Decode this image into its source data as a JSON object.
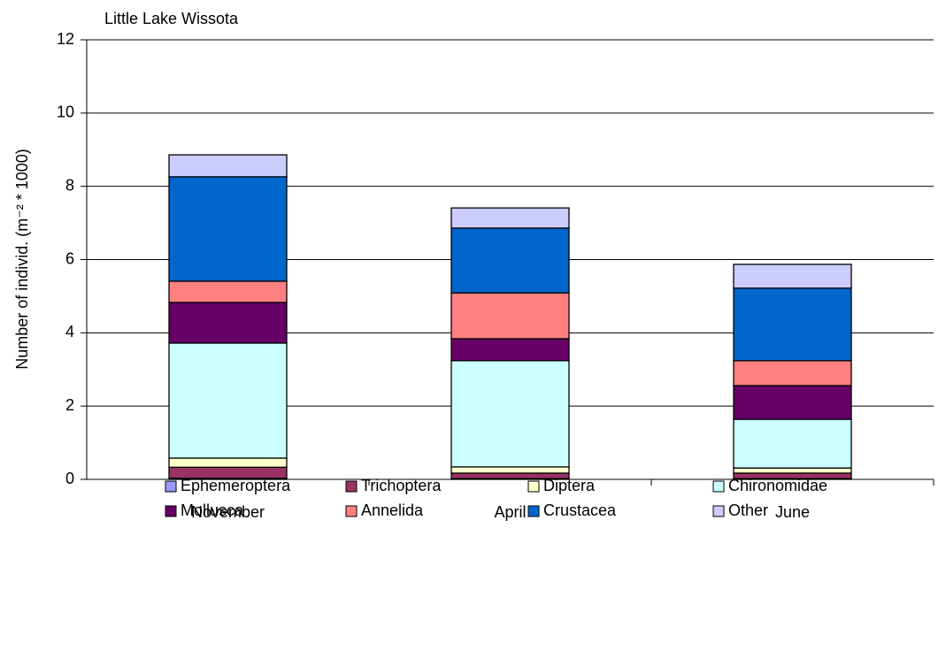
{
  "chart_data": {
    "type": "stacked_bar",
    "title": "Little Lake Wissota",
    "y_label": "Number of individ. (m⁻² * 1000)",
    "categories": [
      "November",
      "April",
      "June"
    ],
    "ylim": [
      0,
      12
    ],
    "yticks": [
      0,
      2,
      4,
      6,
      8,
      10,
      12
    ],
    "grid": true,
    "series": [
      {
        "name": "Ephemeroptera",
        "color": "#9999ff",
        "values": [
          0.03,
          0.02,
          0.02
        ]
      },
      {
        "name": "Trichoptera",
        "color": "#993366",
        "values": [
          0.3,
          0.15,
          0.15
        ]
      },
      {
        "name": "Diptera",
        "color": "#ffffcc",
        "values": [
          0.25,
          0.17,
          0.14
        ]
      },
      {
        "name": "Chironomidae",
        "color": "#ccffff",
        "values": [
          3.14,
          2.9,
          1.33
        ]
      },
      {
        "name": "Mollusca",
        "color": "#660066",
        "values": [
          1.11,
          0.6,
          0.92
        ]
      },
      {
        "name": "Annelida",
        "color": "#ff8080",
        "values": [
          0.58,
          1.25,
          0.68
        ]
      },
      {
        "name": "Crustacea",
        "color": "#0066cc",
        "values": [
          2.85,
          1.77,
          1.98
        ]
      },
      {
        "name": "Other",
        "color": "#ccccff",
        "values": [
          0.6,
          0.55,
          0.65
        ]
      }
    ]
  }
}
